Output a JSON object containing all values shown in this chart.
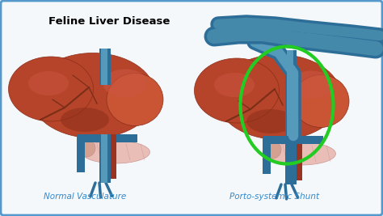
{
  "bg_color": "#d6eaf8",
  "border_color": "#5599cc",
  "inner_bg": "#f5f8fa",
  "title": "Feline Liver Disease",
  "title_fontsize": 9.5,
  "title_fontweight": "bold",
  "label_left": "Normal Vasculature",
  "label_right": "Porto-systemic Shunt",
  "label_color": "#3388cc",
  "label_fontsize": 7.5,
  "liver_color": "#b5442a",
  "liver_dark": "#8b2e18",
  "liver_mid": "#c95535",
  "liver_light": "#d4614a",
  "liver_highlight": "#cc5540",
  "vein_blue": "#2d6e99",
  "vein_light": "#5599bb",
  "vein_teal": "#4488aa",
  "shunt_green": "#22cc22",
  "pancreas_color": "#e8b8b0",
  "pancreas_dark": "#c89090",
  "vessel_red": "#993322",
  "shadow": "#7a2e18"
}
